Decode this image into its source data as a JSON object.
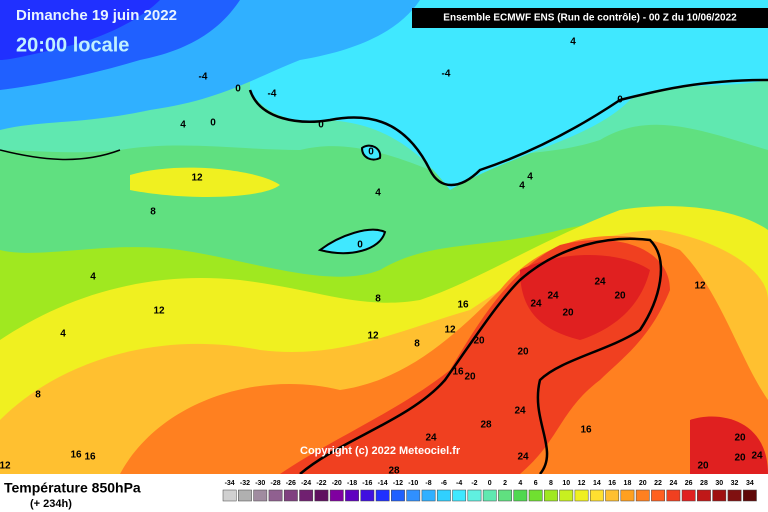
{
  "header": {
    "date": "Dimanche 19 juin 2022",
    "time": "20:00 locale",
    "run": "Ensemble ECMWF ENS  (Run de contrôle)  -  00 Z du 10/06/2022"
  },
  "copyright": "Copyright (c) 2022 Meteociel.fr",
  "footer": {
    "title": "Température 850hPa",
    "lead": "(+ 234h)"
  },
  "scale": {
    "ticks": [
      -34,
      -32,
      -30,
      -28,
      -26,
      -24,
      -22,
      -20,
      -18,
      -16,
      -14,
      -12,
      -10,
      -8,
      -6,
      -4,
      -2,
      0,
      2,
      4,
      6,
      8,
      10,
      12,
      14,
      16,
      18,
      20,
      22,
      24,
      26,
      28,
      30,
      32,
      34
    ],
    "colors": [
      "#d0d0d0",
      "#b0b0b0",
      "#a08ca0",
      "#906090",
      "#804080",
      "#702070",
      "#601060",
      "#8000a0",
      "#6000c0",
      "#4010e0",
      "#2030ff",
      "#2060ff",
      "#3090ff",
      "#30b0ff",
      "#30d0ff",
      "#40e8ff",
      "#60f0e0",
      "#60e8b0",
      "#60e080",
      "#50d850",
      "#70e030",
      "#a0e820",
      "#c8f020",
      "#f0f020",
      "#ffe030",
      "#ffc030",
      "#ffa020",
      "#ff8020",
      "#ff6020",
      "#f04020",
      "#e02020",
      "#c01818",
      "#a01010",
      "#801010",
      "#600808"
    ]
  },
  "contour_labels": [
    "-4",
    "0",
    "-4",
    "-4",
    "4",
    "0",
    "4",
    "0",
    "0",
    "0",
    "4",
    "0",
    "12",
    "8",
    "4",
    "4",
    "4",
    "12",
    "8",
    "16",
    "12",
    "12",
    "8",
    "4",
    "12",
    "24",
    "24",
    "24",
    "20",
    "20",
    "20",
    "20",
    "16",
    "20",
    "8",
    "24",
    "28",
    "24",
    "16",
    "16",
    "16",
    "24",
    "20",
    "20",
    "24",
    "20",
    "12",
    "28"
  ]
}
